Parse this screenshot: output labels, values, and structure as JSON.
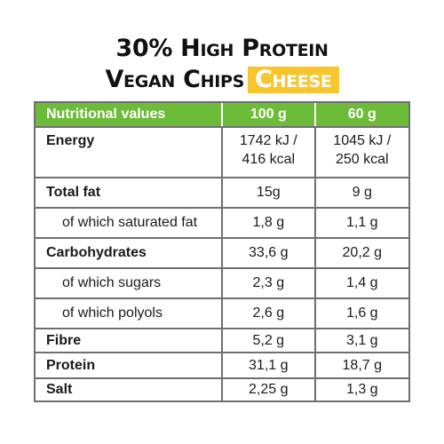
{
  "title": {
    "line1": "30% High Protein",
    "line2": "Vegan Chips",
    "flavor": "Cheese"
  },
  "table": {
    "headers": {
      "nutrient": "Nutritional values",
      "col1": "100 g",
      "col2": "60 g"
    },
    "rows": [
      {
        "label": "Energy",
        "col1_line1": "1742 kJ /",
        "col1_line2": "416 kcal",
        "col2_line1": "1045 kJ /",
        "col2_line2": "250 kcal"
      },
      {
        "label": "Total fat",
        "col1": "15g",
        "col2": "9 g"
      },
      {
        "label": "of which saturated fat",
        "col1": "1,8 g",
        "col2": "1,1 g"
      },
      {
        "label": "Carbohydrates",
        "col1": "33,6 g",
        "col2": "20,2 g"
      },
      {
        "label": "of which sugars",
        "col1": "2,3 g",
        "col2": "1,4 g"
      },
      {
        "label": "of which polyols",
        "col1": "2,6 g",
        "col2": "1,6 g"
      },
      {
        "label": "Fibre",
        "col1": "5,2 g",
        "col2": "3,1 g"
      },
      {
        "label": "Protein",
        "col1": "31,1 g",
        "col2": "18,7 g"
      },
      {
        "label": "Salt",
        "col1": "2,25 g",
        "col2": "1,3 g"
      }
    ]
  },
  "colors": {
    "header_bg": "#6cbc3a",
    "flavor_bg": "#f9c52c",
    "border": "#6f6f6f"
  }
}
